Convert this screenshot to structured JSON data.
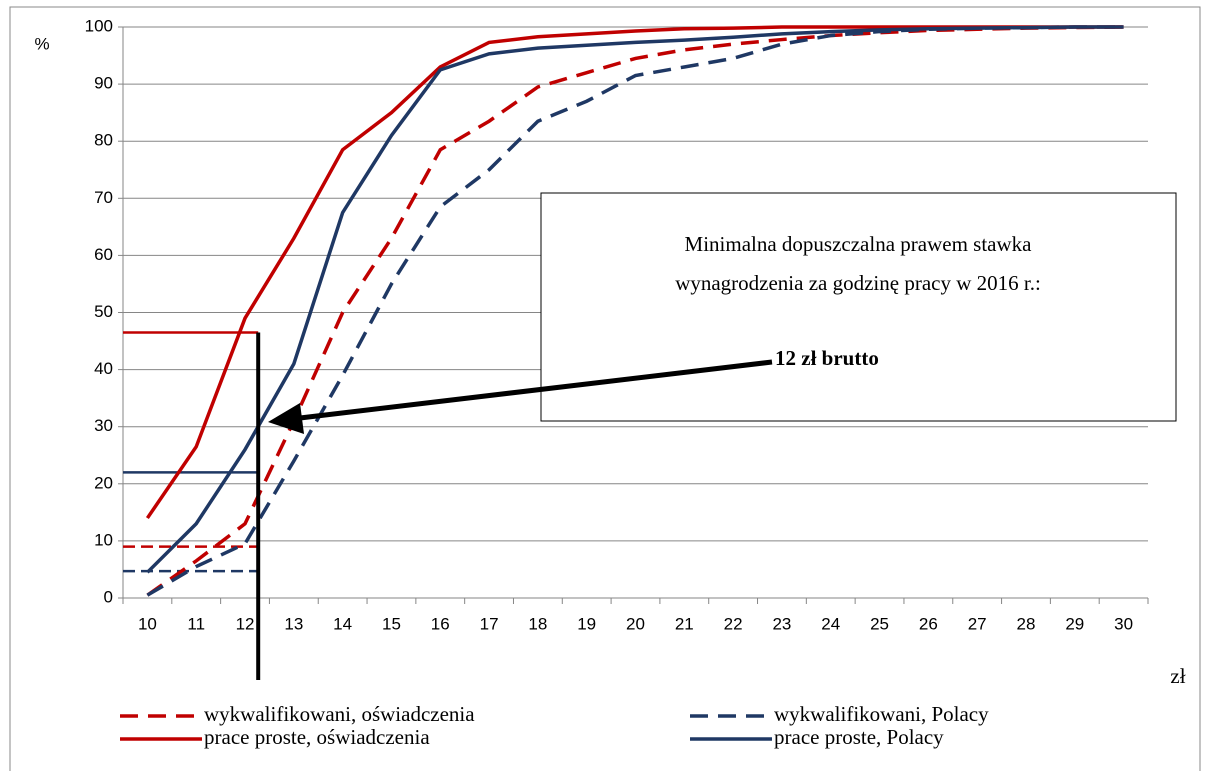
{
  "chart_data": {
    "type": "line",
    "y_label": "%",
    "x_label": "zł",
    "categories": [
      "10",
      "11",
      "12",
      "13",
      "14",
      "15",
      "16",
      "17",
      "18",
      "19",
      "20",
      "21",
      "22",
      "23",
      "24",
      "25",
      "26",
      "27",
      "28",
      "29",
      "30"
    ],
    "series": [
      {
        "name": "wykwalifikowani, oświadczenia",
        "color": "#c00000",
        "dashed": true,
        "values": [
          0.5,
          6.5,
          13,
          31,
          50,
          63,
          78.5,
          83.5,
          89.5,
          92,
          94.5,
          96,
          97,
          97.8,
          98.5,
          99,
          99.4,
          99.6,
          99.8,
          99.9,
          100
        ]
      },
      {
        "name": "wykwalifikowani, Polacy",
        "color": "#1f3864",
        "dashed": true,
        "values": [
          0.5,
          5.5,
          9.5,
          24,
          39,
          55,
          68.5,
          75,
          83.5,
          87,
          91.5,
          93,
          94.5,
          97,
          98.5,
          99.2,
          99.6,
          99.8,
          99.9,
          100,
          100
        ]
      },
      {
        "name": "prace proste, oświadczenia",
        "color": "#c00000",
        "dashed": false,
        "values": [
          14,
          26.5,
          49,
          63,
          78.5,
          85,
          93,
          97.3,
          98.3,
          98.8,
          99.3,
          99.7,
          99.8,
          100,
          100,
          100,
          100,
          100,
          100,
          100,
          100
        ]
      },
      {
        "name": "prace proste, Polacy",
        "color": "#1f3864",
        "dashed": false,
        "values": [
          4.5,
          13,
          26,
          41,
          67.5,
          81,
          92.5,
          95.3,
          96.3,
          96.8,
          97.3,
          97.7,
          98.2,
          98.8,
          99.2,
          99.5,
          99.7,
          99.8,
          99.9,
          100,
          100
        ]
      }
    ],
    "ylim": [
      0,
      100
    ],
    "yticks": [
      0,
      10,
      20,
      30,
      40,
      50,
      60,
      70,
      80,
      90,
      100
    ],
    "grid": true,
    "marker_x": 12.27,
    "reference_lines": [
      {
        "value": 46.5,
        "color": "#c00000",
        "dashed": false
      },
      {
        "value": 22,
        "color": "#1f3864",
        "dashed": false
      },
      {
        "value": 9,
        "color": "#c00000",
        "dashed": true
      },
      {
        "value": 4.7,
        "color": "#1f3864",
        "dashed": true
      }
    ],
    "annotation": {
      "lines": [
        "Minimalna dopuszczalna prawem stawka",
        "wynagrodzenia za godzinę pracy w 2016 r.:"
      ],
      "highlight": "12 zł brutto"
    }
  }
}
